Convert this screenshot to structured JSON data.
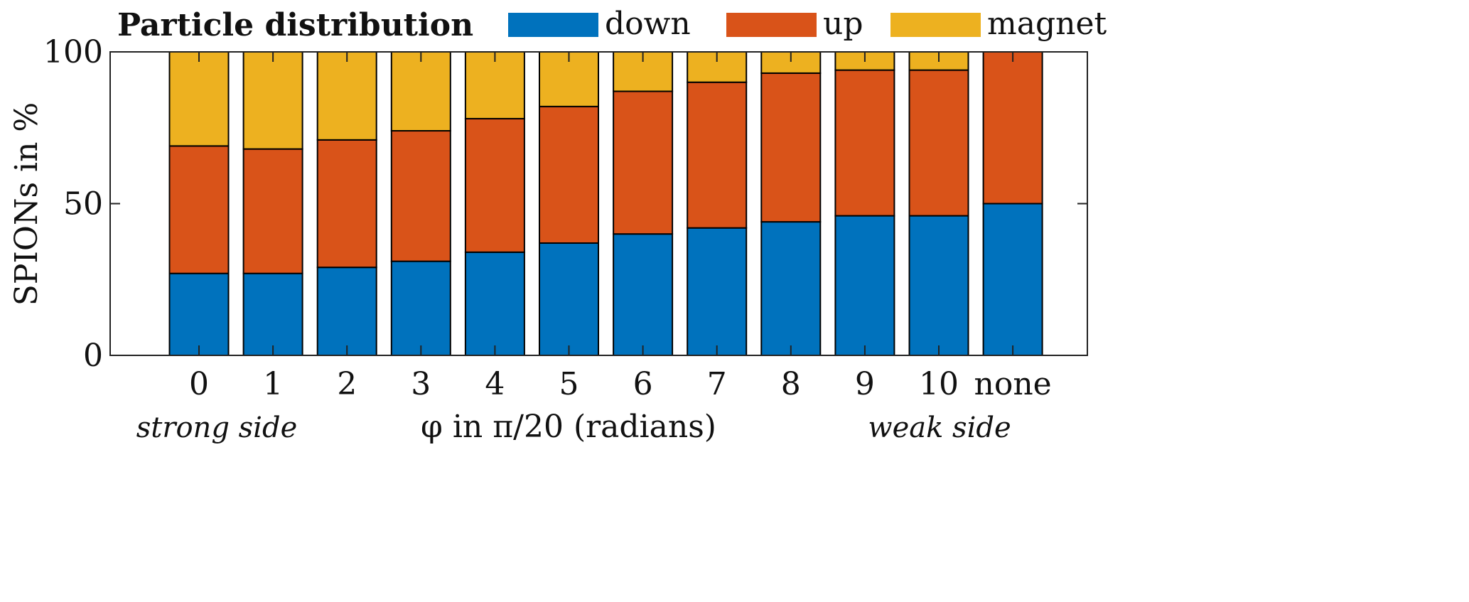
{
  "chart_data": {
    "type": "bar",
    "stacked": true,
    "title": "Particle distribution",
    "categories": [
      "0",
      "1",
      "2",
      "3",
      "4",
      "5",
      "6",
      "7",
      "8",
      "9",
      "10",
      "none"
    ],
    "series": [
      {
        "name": "down",
        "color": "#0072BD",
        "values": [
          27,
          27,
          29,
          31,
          34,
          37,
          40,
          42,
          44,
          46,
          46,
          50
        ]
      },
      {
        "name": "up",
        "color": "#D95319",
        "values": [
          42,
          41,
          42,
          43,
          44,
          45,
          47,
          48,
          49,
          48,
          48,
          50
        ]
      },
      {
        "name": "magnet",
        "color": "#EDB120",
        "values": [
          31,
          32,
          29,
          26,
          22,
          18,
          13,
          10,
          7,
          6,
          6,
          0
        ]
      }
    ],
    "xlabel": "φ in π/20 (radians)",
    "xlabel_left_note": "strong side",
    "xlabel_right_note": "weak side",
    "ylabel": "SPIONs in %",
    "ylim": [
      0,
      100
    ],
    "yticks": [
      0,
      50,
      100
    ],
    "grid": false,
    "legend_placement": "top"
  }
}
